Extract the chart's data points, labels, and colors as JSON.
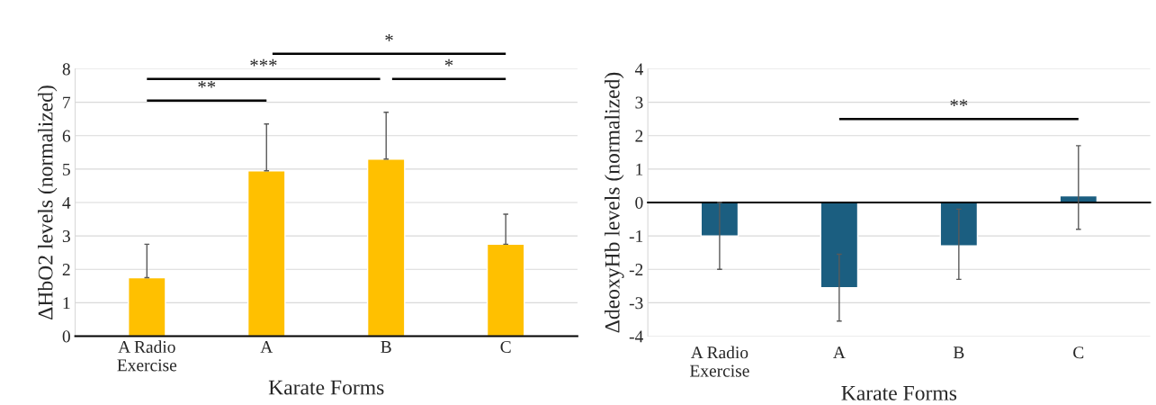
{
  "chart_data": [
    {
      "type": "bar",
      "xlabel": "Karate Forms",
      "ylabel": "ΔHbO2 levels (normalized)",
      "categories": [
        "A Radio\nExercise",
        "A",
        "B",
        "C"
      ],
      "values": [
        1.75,
        4.95,
        5.3,
        2.75
      ],
      "color": "#ffc000",
      "errors": [
        [
          1.75,
          2.75
        ],
        [
          4.95,
          6.35
        ],
        [
          5.3,
          6.7
        ],
        [
          2.75,
          3.65
        ]
      ],
      "ylim": [
        0,
        8
      ],
      "yticks": [
        0,
        1,
        2,
        3,
        4,
        5,
        6,
        7,
        8
      ],
      "grid": "y",
      "annotations": [
        "**",
        "***",
        "*",
        "*"
      ]
    },
    {
      "type": "bar",
      "xlabel": "Karate Forms",
      "ylabel": "ΔdeoxyHb levels (normalized)",
      "categories": [
        "A Radio\nExercise",
        "A",
        "B",
        "C"
      ],
      "values": [
        -1.0,
        -2.55,
        -1.3,
        0.2
      ],
      "color": "#1b5e80",
      "errors": [
        [
          -2.0,
          0.0
        ],
        [
          -3.55,
          -1.55
        ],
        [
          -2.3,
          -0.2
        ],
        [
          -0.8,
          1.7
        ]
      ],
      "ylim": [
        -4,
        4
      ],
      "yticks": [
        -4,
        -3,
        -2,
        -1,
        0,
        1,
        2,
        3,
        4
      ],
      "grid": "y",
      "annotations": [
        "**"
      ]
    }
  ]
}
